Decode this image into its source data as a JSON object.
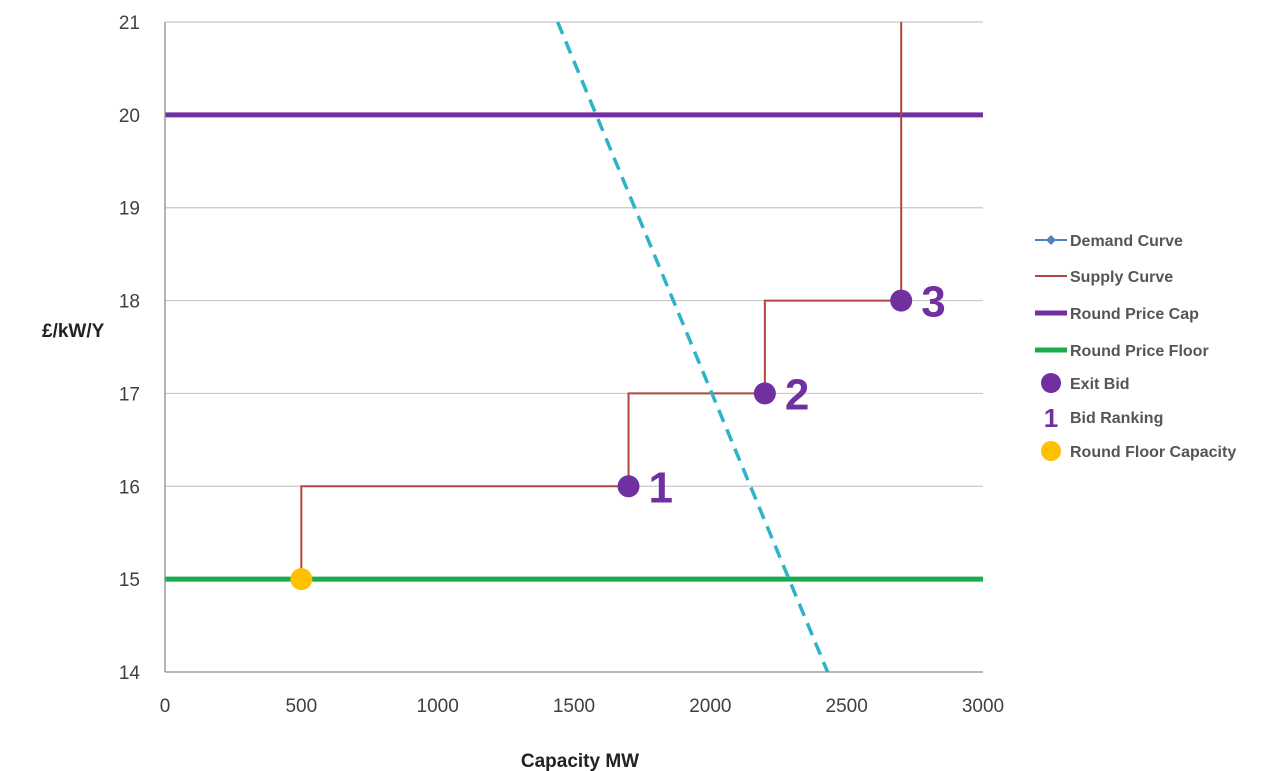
{
  "chart_data": {
    "type": "line",
    "xlabel": "Capacity MW",
    "ylabel": "£/kW/Y",
    "xlim": [
      0,
      3000
    ],
    "ylim": [
      14,
      21
    ],
    "x_ticks": [
      "0",
      "500",
      "1000",
      "1500",
      "2000",
      "2500",
      "3000"
    ],
    "y_ticks": [
      "14",
      "15",
      "16",
      "17",
      "18",
      "19",
      "20",
      "21"
    ],
    "grid": "horizontal",
    "legend_position": "right",
    "series": [
      {
        "name": "Demand Curve",
        "style": "dashed",
        "color": "#2fb3c9",
        "points": [
          [
            1440,
            21
          ],
          [
            2430,
            14
          ]
        ]
      },
      {
        "name": "Supply Curve",
        "style": "step",
        "color": "#b5453f",
        "points": [
          [
            500,
            15
          ],
          [
            500,
            16
          ],
          [
            1700,
            16
          ],
          [
            1700,
            17
          ],
          [
            2200,
            17
          ],
          [
            2200,
            18
          ],
          [
            2700,
            18
          ],
          [
            2700,
            21
          ]
        ]
      },
      {
        "name": "Round Price Cap",
        "style": "hline",
        "color": "#7030a0",
        "value": 20
      },
      {
        "name": "Round Price Floor",
        "style": "hline",
        "color": "#1aab4a",
        "value": 15
      }
    ],
    "exit_bids": {
      "name": "Exit Bid",
      "color": "#7030a0",
      "points": [
        {
          "x": 1700,
          "y": 16,
          "rank": "1"
        },
        {
          "x": 2200,
          "y": 17,
          "rank": "2"
        },
        {
          "x": 2700,
          "y": 18,
          "rank": "3"
        }
      ]
    },
    "round_floor_capacity": {
      "name": "Round Floor Capacity",
      "color": "#ffc000",
      "x": 500,
      "y": 15
    }
  },
  "legend": [
    {
      "key": "demand",
      "label": "Demand Curve"
    },
    {
      "key": "supply",
      "label": "Supply Curve"
    },
    {
      "key": "cap",
      "label": "Round Price Cap"
    },
    {
      "key": "floor",
      "label": "Round Price Floor"
    },
    {
      "key": "exit",
      "label": "Exit Bid"
    },
    {
      "key": "rank",
      "label": "Bid Ranking",
      "glyph": "1"
    },
    {
      "key": "floorcap",
      "label": "Round Floor Capacity"
    }
  ],
  "colors": {
    "demand_marker": "#4f81bd",
    "grid": "#c8c8c8",
    "axis": "#8c8c8c"
  }
}
